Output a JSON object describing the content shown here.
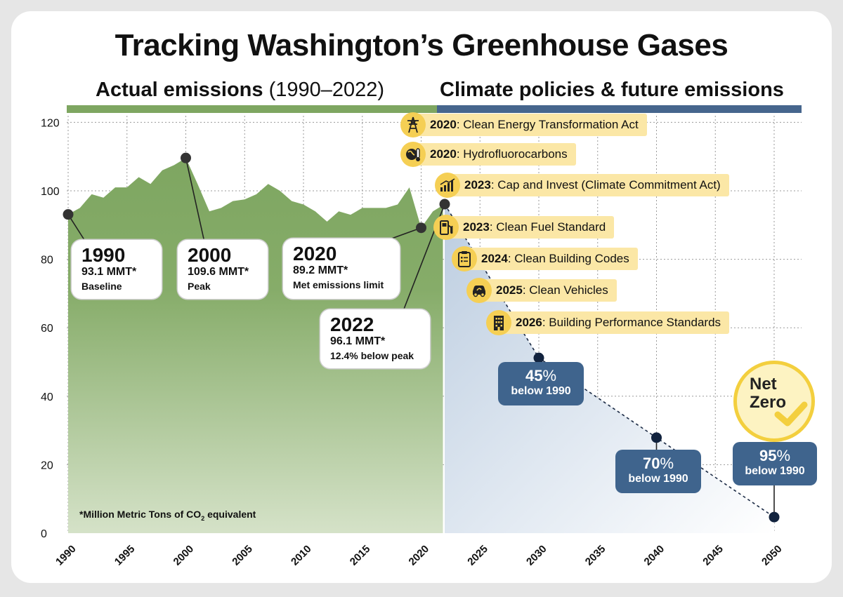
{
  "title": "Tracking Washington’s Greenhouse Gases",
  "section_left": {
    "bold": "Actual emissions",
    "rest": " (1990–2022)"
  },
  "section_right": "Climate policies & future emissions",
  "colors": {
    "actual": "#7ea661",
    "future": "#46668d",
    "policy_pill": "#fbe7a6",
    "policy_icon": "#f5cf54",
    "target_box": "#3f648d"
  },
  "footnote": {
    "text": "*Million Metric Tons of CO",
    "sub": "2",
    "tail": " equivalent"
  },
  "callouts": [
    {
      "year": "1990",
      "value": "93.1 MMT*",
      "note": "Baseline"
    },
    {
      "year": "2000",
      "value": "109.6 MMT*",
      "note": "Peak"
    },
    {
      "year": "2020",
      "value": "89.2 MMT*",
      "note": "Met emissions limit"
    },
    {
      "year": "2022",
      "value": "96.1 MMT*",
      "note": "12.4% below peak"
    }
  ],
  "policies": [
    {
      "year": "2020",
      "name": ": Clean Energy Transformation Act",
      "icon": "power-tower-icon"
    },
    {
      "year": "2020",
      "name": ": Hydrofluorocarbons",
      "icon": "globe-thermometer-icon"
    },
    {
      "year": "2023",
      "name": ": Cap and Invest (Climate Commitment Act)",
      "icon": "bar-chart-icon"
    },
    {
      "year": "2023",
      "name": ": Clean Fuel Standard",
      "icon": "fuel-pump-icon"
    },
    {
      "year": "2024",
      "name": ": Clean Building Codes",
      "icon": "clipboard-icon"
    },
    {
      "year": "2025",
      "name": ": Clean Vehicles",
      "icon": "car-icon"
    },
    {
      "year": "2026",
      "name": ": Building Performance Standards",
      "icon": "building-icon"
    }
  ],
  "targets": [
    {
      "pct": "45",
      "sym": "%",
      "label": "below 1990"
    },
    {
      "pct": "70",
      "sym": "%",
      "label": "below 1990"
    },
    {
      "pct": "95",
      "sym": "%",
      "label": "below 1990"
    }
  ],
  "net_zero": "Net Zero",
  "chart_data": {
    "type": "area",
    "ylim": [
      0,
      120
    ],
    "xlim": [
      1990,
      2052
    ],
    "yticks": [
      0,
      20,
      40,
      60,
      80,
      100,
      120
    ],
    "xticks": [
      1990,
      1995,
      2000,
      2005,
      2010,
      2015,
      2020,
      2025,
      2030,
      2035,
      2040,
      2045,
      2050
    ],
    "grid": true,
    "series": [
      {
        "x": [
          1990,
          1991,
          1992,
          1993,
          1994,
          1995,
          1996,
          1997,
          1998,
          1999,
          2000,
          2001,
          2002,
          2003,
          2004,
          2005,
          2006,
          2007,
          2008,
          2009,
          2010,
          2011,
          2012,
          2013,
          2014,
          2015,
          2016,
          2017,
          2018,
          2019,
          2020,
          2021,
          2022
        ],
        "values": [
          93.1,
          95,
          99,
          98,
          101,
          101,
          104,
          102,
          106,
          107.5,
          109.6,
          102,
          94,
          95,
          97,
          97.5,
          99,
          102,
          100,
          97,
          96,
          94,
          91,
          94,
          93,
          95,
          95,
          95,
          96,
          101,
          89.2,
          94,
          96.1
        ]
      },
      {
        "x": [
          2022,
          2030,
          2040,
          2050
        ],
        "values": [
          96.1,
          51.2,
          27.9,
          4.7
        ]
      }
    ],
    "highlighted_points": [
      {
        "x": 1990,
        "y": 93.1
      },
      {
        "x": 2000,
        "y": 109.6
      },
      {
        "x": 2020,
        "y": 89.2
      },
      {
        "x": 2022,
        "y": 96.1
      },
      {
        "x": 2030,
        "y": 51.2
      },
      {
        "x": 2040,
        "y": 27.9
      },
      {
        "x": 2050,
        "y": 4.7
      }
    ]
  }
}
